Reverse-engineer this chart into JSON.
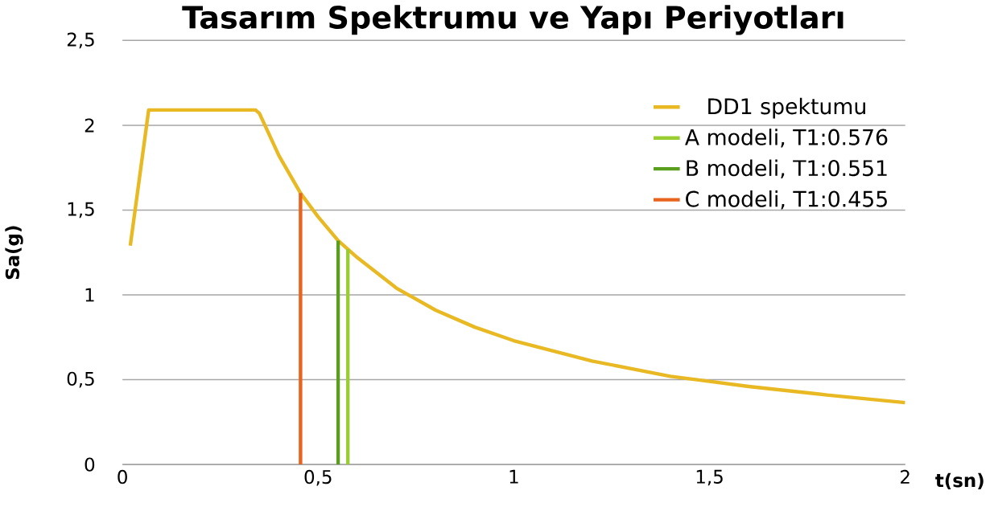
{
  "chart_data": {
    "type": "line",
    "title": "Tasarım Spektrumu ve Yapı Periyotları",
    "xlabel": "t(sn)",
    "ylabel": "Sa(g)",
    "xlim": [
      0,
      2
    ],
    "ylim": [
      0,
      2.5
    ],
    "xticks": [
      0,
      {
        "value": 0.5,
        "label": "0,5"
      },
      1,
      {
        "value": 1.5,
        "label": "1,5"
      },
      2
    ],
    "yticks": [
      0,
      {
        "value": 0.5,
        "label": "0,5"
      },
      1,
      {
        "value": 1.5,
        "label": "1,5"
      },
      2,
      {
        "value": 2.5,
        "label": "2,5"
      }
    ],
    "grid": "y",
    "legend": "top right",
    "marker": "none",
    "line_style": "solid",
    "series": [
      {
        "name": "DD1 spektumu",
        "color": "#e8b923",
        "x": [
          0.02,
          0.067,
          0.1,
          0.2,
          0.3,
          0.34,
          0.35,
          0.4,
          0.455,
          0.5,
          0.551,
          0.6,
          0.7,
          0.8,
          0.9,
          1.0,
          1.2,
          1.4,
          1.5,
          1.6,
          1.8,
          2.0
        ],
        "values": [
          1.29,
          2.09,
          2.09,
          2.09,
          2.09,
          2.09,
          2.07,
          1.82,
          1.6,
          1.46,
          1.32,
          1.22,
          1.04,
          0.91,
          0.81,
          0.73,
          0.61,
          0.52,
          0.49,
          0.46,
          0.41,
          0.365
        ]
      },
      {
        "name": "A modeli, T1:0.576",
        "color": "#9acd32",
        "x": [
          0.576,
          0.576
        ],
        "values": [
          0,
          1.27
        ]
      },
      {
        "name": "B modeli, T1:0.551",
        "color": "#5a9e1e",
        "x": [
          0.551,
          0.551
        ],
        "values": [
          0,
          1.32
        ]
      },
      {
        "name": "C modeli, T1:0.455",
        "color": "#e8641e",
        "x": [
          0.455,
          0.455
        ],
        "values": [
          0,
          1.6
        ]
      }
    ]
  }
}
